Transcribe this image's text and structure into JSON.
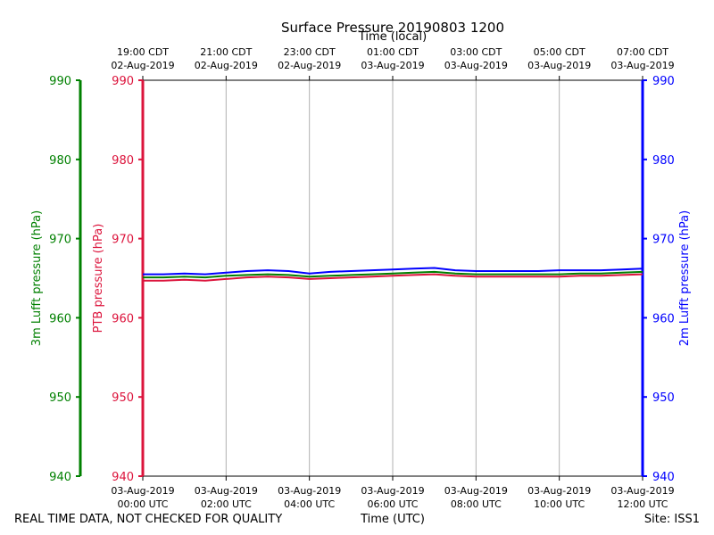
{
  "chart_data": {
    "type": "line",
    "title": "Surface Pressure 20190803 1200",
    "top_xlabel": "Time (local)",
    "bottom_xlabel": "Time (UTC)",
    "footer_left": "REAL TIME DATA, NOT CHECKED FOR QUALITY",
    "footer_right": "Site: ISS1",
    "x_range_hours": [
      0,
      12
    ],
    "grid": "vertical",
    "bottom_ticks": [
      {
        "hour": 0,
        "line1": "03-Aug-2019",
        "line2": "00:00 UTC"
      },
      {
        "hour": 2,
        "line1": "03-Aug-2019",
        "line2": "02:00 UTC"
      },
      {
        "hour": 4,
        "line1": "03-Aug-2019",
        "line2": "04:00 UTC"
      },
      {
        "hour": 6,
        "line1": "03-Aug-2019",
        "line2": "06:00 UTC"
      },
      {
        "hour": 8,
        "line1": "03-Aug-2019",
        "line2": "08:00 UTC"
      },
      {
        "hour": 10,
        "line1": "03-Aug-2019",
        "line2": "10:00 UTC"
      },
      {
        "hour": 12,
        "line1": "03-Aug-2019",
        "line2": "12:00 UTC"
      }
    ],
    "top_ticks": [
      {
        "hour": 0,
        "line1": "19:00 CDT",
        "line2": "02-Aug-2019"
      },
      {
        "hour": 2,
        "line1": "21:00 CDT",
        "line2": "02-Aug-2019"
      },
      {
        "hour": 4,
        "line1": "23:00 CDT",
        "line2": "02-Aug-2019"
      },
      {
        "hour": 6,
        "line1": "01:00 CDT",
        "line2": "03-Aug-2019"
      },
      {
        "hour": 8,
        "line1": "03:00 CDT",
        "line2": "03-Aug-2019"
      },
      {
        "hour": 10,
        "line1": "05:00 CDT",
        "line2": "03-Aug-2019"
      },
      {
        "hour": 12,
        "line1": "07:00 CDT",
        "line2": "03-Aug-2019"
      }
    ],
    "axes": [
      {
        "id": "lufft3m",
        "label": "3m Lufft pressure (hPa)",
        "color": "#008000",
        "ylim": [
          940,
          990
        ],
        "ticks": [
          940,
          950,
          960,
          970,
          980,
          990
        ]
      },
      {
        "id": "ptb",
        "label": "PTB pressure (hPa)",
        "color": "#dc143c",
        "ylim": [
          940,
          990
        ],
        "ticks": [
          940,
          950,
          960,
          970,
          980,
          990
        ]
      },
      {
        "id": "lufft2m",
        "label": "2m Lufft pressure (hPa)",
        "color": "#0000ff",
        "ylim": [
          940,
          990
        ],
        "ticks": [
          940,
          950,
          960,
          970,
          980,
          990
        ]
      }
    ],
    "series": [
      {
        "axis": "lufft3m",
        "color": "#008000",
        "x": [
          0,
          0.5,
          1,
          1.5,
          2,
          2.5,
          3,
          3.5,
          4,
          4.5,
          5,
          5.5,
          6,
          6.5,
          7,
          7.5,
          8,
          8.5,
          9,
          9.5,
          10,
          10.5,
          11,
          11.5,
          12
        ],
        "y": [
          965.1,
          965.1,
          965.2,
          965.1,
          965.3,
          965.4,
          965.5,
          965.4,
          965.2,
          965.3,
          965.4,
          965.5,
          965.6,
          965.7,
          965.8,
          965.6,
          965.5,
          965.5,
          965.5,
          965.5,
          965.5,
          965.6,
          965.6,
          965.7,
          965.8
        ]
      },
      {
        "axis": "ptb",
        "color": "#dc143c",
        "x": [
          0,
          0.5,
          1,
          1.5,
          2,
          2.5,
          3,
          3.5,
          4,
          4.5,
          5,
          5.5,
          6,
          6.5,
          7,
          7.5,
          8,
          8.5,
          9,
          9.5,
          10,
          10.5,
          11,
          11.5,
          12
        ],
        "y": [
          964.7,
          964.7,
          964.8,
          964.7,
          964.9,
          965.1,
          965.2,
          965.1,
          964.9,
          965.0,
          965.1,
          965.2,
          965.3,
          965.4,
          965.5,
          965.3,
          965.2,
          965.2,
          965.2,
          965.2,
          965.2,
          965.3,
          965.3,
          965.4,
          965.5
        ]
      },
      {
        "axis": "lufft2m",
        "color": "#0000ff",
        "x": [
          0,
          0.5,
          1,
          1.5,
          2,
          2.5,
          3,
          3.5,
          4,
          4.5,
          5,
          5.5,
          6,
          6.5,
          7,
          7.5,
          8,
          8.5,
          9,
          9.5,
          10,
          10.5,
          11,
          11.5,
          12
        ],
        "y": [
          965.5,
          965.5,
          965.6,
          965.5,
          965.7,
          965.9,
          966.0,
          965.9,
          965.6,
          965.8,
          965.9,
          966.0,
          966.1,
          966.2,
          966.3,
          966.0,
          965.9,
          965.9,
          965.9,
          965.9,
          966.0,
          966.0,
          966.0,
          966.1,
          966.2
        ]
      }
    ]
  }
}
